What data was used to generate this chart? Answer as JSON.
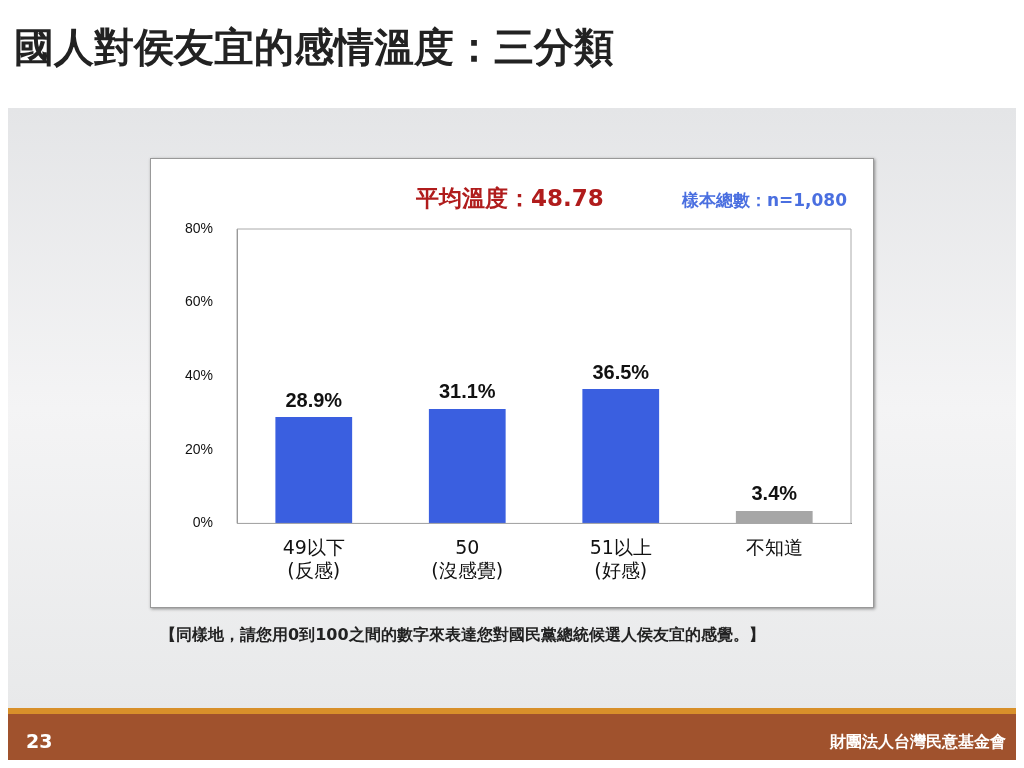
{
  "chart_data": {
    "type": "bar",
    "title": "國人對侯友宜的感情溫度：三分類",
    "categories": [
      "49以下\n(反感)",
      "50\n(沒感覺)",
      "51以上\n(好感)",
      "不知道"
    ],
    "values": [
      28.9,
      31.1,
      36.5,
      3.4
    ],
    "colors": [
      "#3a5fe0",
      "#3a5fe0",
      "#3a5fe0",
      "#a6a6a6"
    ],
    "value_labels": [
      "28.9%",
      "31.1%",
      "36.5%",
      "3.4%"
    ],
    "ylim": [
      0,
      80
    ],
    "yticks": [
      {
        "value": 0,
        "label": "0%"
      },
      {
        "value": 20,
        "label": "20%"
      },
      {
        "value": 40,
        "label": "40%"
      },
      {
        "value": 60,
        "label": "60%"
      },
      {
        "value": 80,
        "label": "80%"
      }
    ],
    "grid": false,
    "legend": false,
    "annotations": [
      "平均溫度：48.78",
      "樣本總數：n=1,080",
      "【同樣地，請您用0到100之間的數字來表達您對國民黨總統候選人侯友宜的感覺。】",
      "23",
      "財團法人台灣民意基金會"
    ]
  }
}
